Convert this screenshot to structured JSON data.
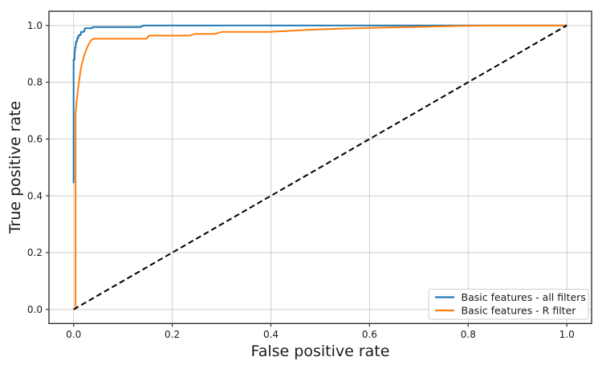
{
  "figure": {
    "background": "#ffffff",
    "grid_color": "#cfcfcf",
    "spine_color": "#333333",
    "tick_color": "#333333",
    "text_color": "#1a1a1a",
    "legend_border_color": "#cccccc",
    "legend_background": "#ffffff"
  },
  "chart_data": {
    "type": "line",
    "title": "",
    "xlabel": "False positive rate",
    "ylabel": "True positive rate",
    "xlim": [
      -0.05,
      1.05
    ],
    "ylim": [
      -0.05,
      1.05
    ],
    "grid": true,
    "legend_position": "lower right",
    "x_ticks": [
      0.0,
      0.2,
      0.4,
      0.6,
      0.8,
      1.0
    ],
    "y_ticks": [
      0.0,
      0.2,
      0.4,
      0.6,
      0.8,
      1.0
    ],
    "x_tick_labels": [
      "0.0",
      "0.2",
      "0.4",
      "0.6",
      "0.8",
      "1.0"
    ],
    "y_tick_labels": [
      "0.0",
      "0.2",
      "0.4",
      "0.6",
      "0.8",
      "1.0"
    ],
    "series": [
      {
        "name": "Basic features - all filters",
        "color": "#1f77b4",
        "style": "solid",
        "in_legend": true,
        "points": [
          [
            0,
            0.445
          ],
          [
            0,
            0.88
          ],
          [
            0.002,
            0.88
          ],
          [
            0.002,
            0.908
          ],
          [
            0.003,
            0.908
          ],
          [
            0.003,
            0.922
          ],
          [
            0.004,
            0.922
          ],
          [
            0.004,
            0.935
          ],
          [
            0.005,
            0.935
          ],
          [
            0.005,
            0.944
          ],
          [
            0.007,
            0.944
          ],
          [
            0.007,
            0.951
          ],
          [
            0.008,
            0.951
          ],
          [
            0.008,
            0.958
          ],
          [
            0.01,
            0.958
          ],
          [
            0.01,
            0.965
          ],
          [
            0.013,
            0.965
          ],
          [
            0.013,
            0.968
          ],
          [
            0.015,
            0.968
          ],
          [
            0.015,
            0.977
          ],
          [
            0.021,
            0.977
          ],
          [
            0.023,
            0.99
          ],
          [
            0.037,
            0.99
          ],
          [
            0.039,
            0.994
          ],
          [
            0.135,
            0.994
          ],
          [
            0.142,
            1.0
          ],
          [
            1.0,
            1.0
          ]
        ]
      },
      {
        "name": "Basic features - R filter",
        "color": "#ff7f0e",
        "style": "solid",
        "in_legend": true,
        "points": [
          [
            0.004,
            0
          ],
          [
            0.004,
            0.69
          ],
          [
            0.006,
            0.73
          ],
          [
            0.008,
            0.76
          ],
          [
            0.01,
            0.79
          ],
          [
            0.012,
            0.815
          ],
          [
            0.014,
            0.84
          ],
          [
            0.017,
            0.865
          ],
          [
            0.02,
            0.885
          ],
          [
            0.023,
            0.903
          ],
          [
            0.026,
            0.916
          ],
          [
            0.029,
            0.928
          ],
          [
            0.032,
            0.938
          ],
          [
            0.035,
            0.947
          ],
          [
            0.038,
            0.951
          ],
          [
            0.042,
            0.953
          ],
          [
            0.148,
            0.953
          ],
          [
            0.153,
            0.964
          ],
          [
            0.235,
            0.964
          ],
          [
            0.245,
            0.97
          ],
          [
            0.287,
            0.97
          ],
          [
            0.3,
            0.977
          ],
          [
            0.397,
            0.977
          ],
          [
            0.44,
            0.981
          ],
          [
            0.49,
            0.986
          ],
          [
            0.55,
            0.989
          ],
          [
            0.62,
            0.992
          ],
          [
            0.7,
            0.995
          ],
          [
            0.78,
            0.998
          ],
          [
            0.85,
            1.0
          ],
          [
            1.0,
            1.0
          ]
        ]
      },
      {
        "name": "chance-diagonal",
        "color": "#000000",
        "style": "dashed",
        "in_legend": false,
        "points": [
          [
            0,
            0
          ],
          [
            1,
            1
          ]
        ]
      }
    ]
  }
}
